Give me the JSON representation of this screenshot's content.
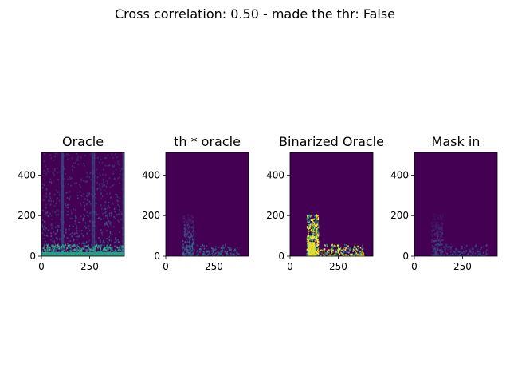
{
  "suptitle": "Cross correlation: 0.50 - made the thr: False",
  "chart_data": [
    {
      "type": "heatmap",
      "title": "Oracle",
      "colormap": "viridis",
      "xlim": [
        0,
        430
      ],
      "ylim": [
        0,
        512
      ],
      "xticks": [
        0,
        250
      ],
      "yticks": [
        0,
        200,
        400
      ],
      "description_level": "bright energy across low rows with vertical streaks up to top"
    },
    {
      "type": "heatmap",
      "title": "th * oracle",
      "colormap": "viridis",
      "xlim": [
        0,
        430
      ],
      "ylim": [
        0,
        512
      ],
      "xticks": [
        0,
        250
      ],
      "yticks": [
        0,
        200,
        400
      ]
    },
    {
      "type": "heatmap",
      "title": "Binarized Oracle",
      "colormap": "viridis",
      "xlim": [
        0,
        430
      ],
      "ylim": [
        0,
        512
      ],
      "xticks": [
        0,
        250
      ],
      "yticks": [
        0,
        200,
        400
      ]
    },
    {
      "type": "heatmap",
      "title": "Mask in",
      "colormap": "viridis",
      "xlim": [
        0,
        430
      ],
      "ylim": [
        0,
        512
      ],
      "xticks": [
        0,
        250
      ],
      "yticks": [
        0,
        200,
        400
      ]
    }
  ],
  "colors": {
    "viridis_low": "#440154",
    "viridis_mid": "#21918c",
    "viridis_high": "#fde725"
  }
}
